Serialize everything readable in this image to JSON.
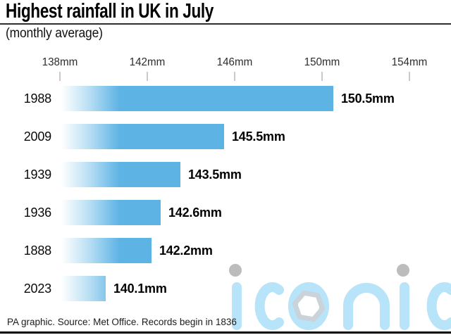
{
  "header": {
    "title": "Highest rainfall in UK in July",
    "subtitle": "(monthly average)"
  },
  "chart_data": {
    "type": "bar",
    "orientation": "horizontal",
    "title": "Highest rainfall in UK in July",
    "subtitle": "(monthly average)",
    "categories": [
      "1988",
      "2009",
      "1939",
      "1936",
      "1888",
      "2023"
    ],
    "values": [
      150.5,
      145.5,
      143.5,
      142.6,
      142.2,
      140.1
    ],
    "value_labels": [
      "150.5mm",
      "145.5mm",
      "143.5mm",
      "142.6mm",
      "142.2mm",
      "140.1mm"
    ],
    "unit": "mm",
    "axis_ticks": [
      "138mm",
      "142mm",
      "146mm",
      "150mm",
      "154mm"
    ],
    "axis_tick_values": [
      138,
      142,
      146,
      150,
      154
    ],
    "xlim": [
      138,
      156
    ],
    "grid": false,
    "legend": false,
    "bar_color": "#5cb3e4",
    "bar_gradient_start": "#ffffff"
  },
  "footer": {
    "credit": "PA graphic. Source: Met Office. Records begin in 1836"
  },
  "watermark": {
    "text": "iconic",
    "color": "#b7e4f9",
    "dot_color": "#bcbcbc",
    "hexagon_color": "#c9d3d9"
  },
  "colors": {
    "title_rule": "#2e2e2e",
    "bottom_rule": "#000000",
    "tick_mark": "#c9c9c9"
  }
}
